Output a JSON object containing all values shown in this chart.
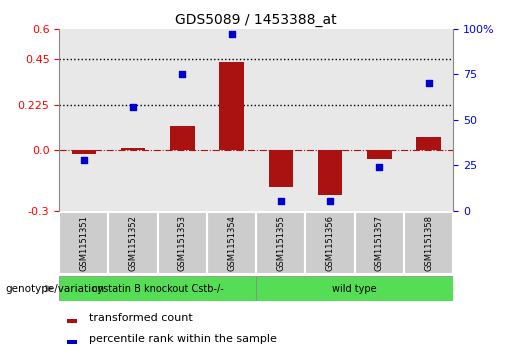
{
  "title": "GDS5089 / 1453388_at",
  "samples": [
    "GSM1151351",
    "GSM1151352",
    "GSM1151353",
    "GSM1151354",
    "GSM1151355",
    "GSM1151356",
    "GSM1151357",
    "GSM1151358"
  ],
  "transformed_count": [
    -0.02,
    0.01,
    0.12,
    0.435,
    -0.185,
    -0.225,
    -0.045,
    0.065
  ],
  "percentile_rank": [
    28,
    57,
    75,
    97,
    5,
    5,
    24,
    70
  ],
  "group1_samples": 4,
  "group1_label": "cystatin B knockout Cstb-/-",
  "group2_label": "wild type",
  "group_color": "#55dd55",
  "bar_color": "#aa1111",
  "dot_color": "#0000cc",
  "ylim_left": [
    -0.3,
    0.6
  ],
  "ylim_right": [
    0,
    100
  ],
  "yticks_left": [
    -0.3,
    0.0,
    0.225,
    0.45,
    0.6
  ],
  "yticks_right": [
    0,
    25,
    50,
    75,
    100
  ],
  "hline_dotted": [
    0.225,
    0.45
  ],
  "hline_dash": 0.0,
  "plot_bg": "#e8e8e8",
  "xtick_bg": "#cccccc",
  "legend_red": "transformed count",
  "legend_blue": "percentile rank within the sample",
  "genotype_label": "genotype/variation"
}
